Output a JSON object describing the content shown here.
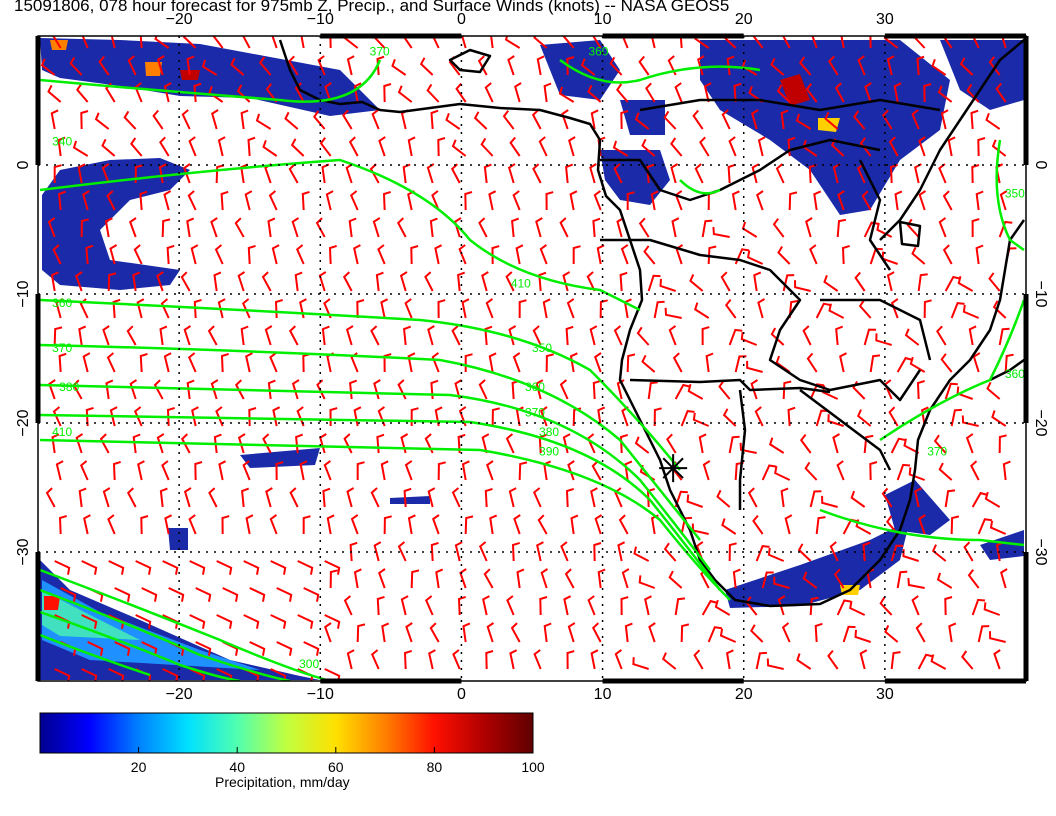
{
  "title": "15091806, 078 hour forecast for 975mb Z, Precip., and Surface Winds (knots) -- NASA GEOS5",
  "map": {
    "lon_range": [
      -30,
      40
    ],
    "lat_range": [
      -40,
      10
    ],
    "lon_ticks": [
      {
        "value": -20,
        "label": "−20"
      },
      {
        "value": -10,
        "label": "−10"
      },
      {
        "value": 0,
        "label": "0"
      },
      {
        "value": 10,
        "label": "10"
      },
      {
        "value": 20,
        "label": "20"
      },
      {
        "value": 30,
        "label": "30"
      }
    ],
    "lat_ticks": [
      {
        "value": 0,
        "label": "0"
      },
      {
        "value": -10,
        "label": "−10"
      },
      {
        "value": -20,
        "label": "−20"
      },
      {
        "value": -30,
        "label": "−30"
      }
    ],
    "contour_color": "#00ee00",
    "barb_color": "#ff0000",
    "coast_color": "#000000",
    "contour_labels": [
      {
        "text": "340",
        "lon": -29.0,
        "lat": 1.5
      },
      {
        "text": "360",
        "lon": -29.0,
        "lat": -11.0
      },
      {
        "text": "370",
        "lon": -29.0,
        "lat": -14.5
      },
      {
        "text": "380",
        "lon": -28.5,
        "lat": -17.5
      },
      {
        "text": "410",
        "lon": -29.0,
        "lat": -21.0
      },
      {
        "text": "410",
        "lon": 3.5,
        "lat": -9.5
      },
      {
        "text": "350",
        "lon": 5.0,
        "lat": -14.5
      },
      {
        "text": "360",
        "lon": 4.5,
        "lat": -17.5
      },
      {
        "text": "370",
        "lon": 4.5,
        "lat": -19.5
      },
      {
        "text": "380",
        "lon": 5.5,
        "lat": -21.0
      },
      {
        "text": "390",
        "lon": 5.5,
        "lat": -22.5
      },
      {
        "text": "370",
        "lon": 33.0,
        "lat": -22.5
      },
      {
        "text": "360",
        "lon": 38.5,
        "lat": -16.5
      },
      {
        "text": "350",
        "lon": 38.5,
        "lat": -2.5
      },
      {
        "text": "360",
        "lon": 9.0,
        "lat": 8.5
      },
      {
        "text": "370",
        "lon": -6.5,
        "lat": 8.5
      },
      {
        "text": "300",
        "lon": -11.5,
        "lat": -39.0
      }
    ],
    "marker": {
      "lon": 15.0,
      "lat": -23.5,
      "icon": "asterisk-icon"
    }
  },
  "colorbar": {
    "label": "Precipitation, mm/day",
    "min": 0,
    "max": 100,
    "ticks": [
      {
        "value": 20,
        "label": "20"
      },
      {
        "value": 40,
        "label": "40"
      },
      {
        "value": 60,
        "label": "60"
      },
      {
        "value": 80,
        "label": "80"
      },
      {
        "value": 100,
        "label": "100"
      }
    ],
    "colors": [
      "#00008f",
      "#0000ff",
      "#0080ff",
      "#00e0ff",
      "#50ffb0",
      "#c0ff40",
      "#ffe000",
      "#ff8000",
      "#ff1000",
      "#b00000",
      "#600000"
    ]
  }
}
